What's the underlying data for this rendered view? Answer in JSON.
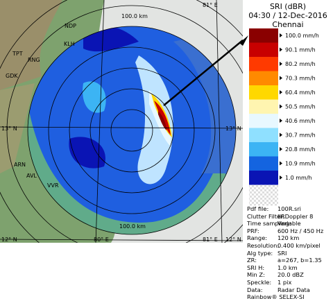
{
  "header": {
    "title": "SRI (dBR)",
    "time": "04:30 / 12-Dec-2016",
    "site": "Chennai"
  },
  "map_labels": {
    "range_top": "100.0 km",
    "range_bottom": "100.0 km",
    "lon_top": "81° E",
    "lon_bottom_east": "81° E",
    "lon_bottom_west": "80° E",
    "lat_13_west": "13° N",
    "lat_13_east": "13° N",
    "lat_12_west": "12° N",
    "lat_12_east": "12° N",
    "towns": [
      "NDP",
      "KLH",
      "RNG",
      "TPT",
      "GDK",
      "ARN",
      "AVL",
      "VVR"
    ]
  },
  "legend": [
    {
      "label": "100.0 mm/h",
      "color": "#8a0000"
    },
    {
      "label": "90.1 mm/h",
      "color": "#c80000"
    },
    {
      "label": "80.2 mm/h",
      "color": "#ff3a00"
    },
    {
      "label": "70.3 mm/h",
      "color": "#ff8a00"
    },
    {
      "label": "60.4 mm/h",
      "color": "#ffd800"
    },
    {
      "label": "50.5 mm/h",
      "color": "#fff5b0"
    },
    {
      "label": "40.6 mm/h",
      "color": "#e8f8ff"
    },
    {
      "label": "30.7 mm/h",
      "color": "#8fe0ff"
    },
    {
      "label": "20.8 mm/h",
      "color": "#3cb4f4"
    },
    {
      "label": "10.9 mm/h",
      "color": "#1464e0"
    },
    {
      "label": "1.0 mm/h",
      "color": "#0a14b4"
    }
  ],
  "info": [
    [
      "Pdf file:",
      "100R.sri"
    ],
    [
      "Clutter Filter:",
      "IIRDoppler 8"
    ],
    [
      "Time sampling:",
      "Variable"
    ],
    [
      "PRF:",
      "600 Hz / 450 Hz"
    ],
    [
      "Range:",
      "120 km"
    ],
    [
      "Resolution:",
      "0.400 km/pixel"
    ],
    [
      "Alg type:",
      "SRI"
    ],
    [
      "ZR:",
      "a=267, b=1.35"
    ],
    [
      "SRI H:",
      "1.0 km"
    ],
    [
      "Min Z:",
      "20.0 dBZ"
    ],
    [
      "Speckle:",
      "1 pix"
    ],
    [
      "Data:",
      "Radar Data"
    ]
  ],
  "footer": "Rainbow® SELEX-SI"
}
